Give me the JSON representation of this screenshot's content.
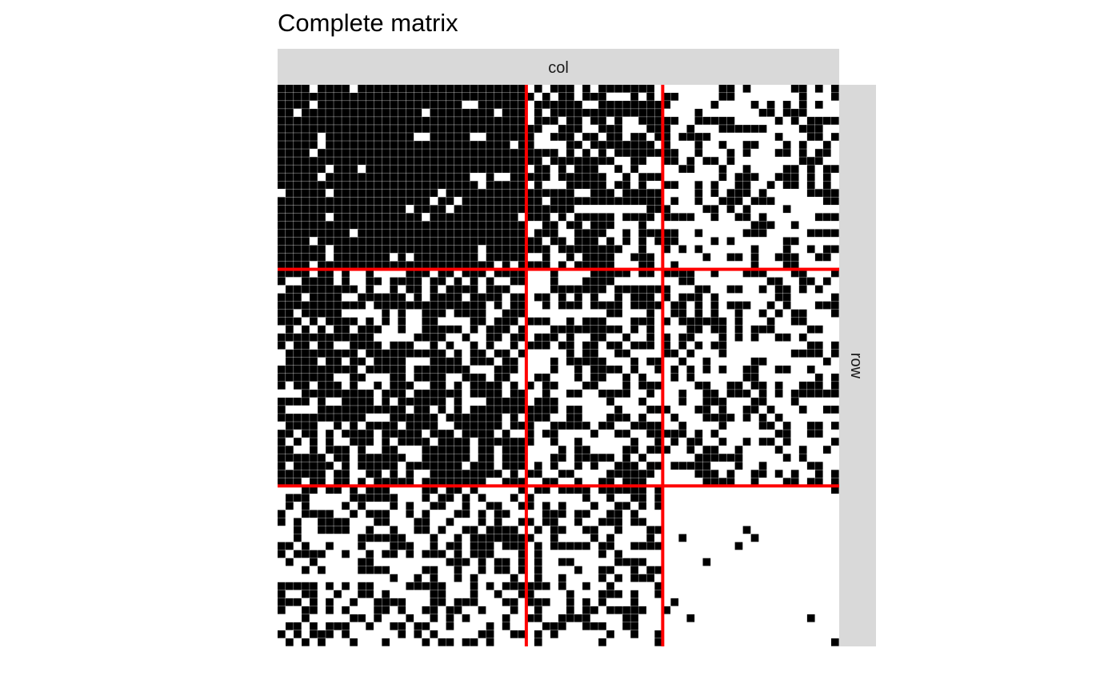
{
  "chart_data": {
    "type": "heatmap",
    "title": "Complete matrix",
    "facet_col_label": "col",
    "facet_row_label": "row",
    "n_rows": 70,
    "n_cols": 70,
    "row_blocks": [
      {
        "start": 0,
        "end": 23
      },
      {
        "start": 23,
        "end": 50
      },
      {
        "start": 50,
        "end": 70
      }
    ],
    "col_blocks": [
      {
        "start": 0,
        "end": 31
      },
      {
        "start": 31,
        "end": 48
      },
      {
        "start": 48,
        "end": 70
      }
    ],
    "block_density": [
      [
        0.94,
        0.65,
        0.4
      ],
      [
        0.68,
        0.5,
        0.4
      ],
      [
        0.46,
        0.46,
        0.03
      ]
    ],
    "value_colors": {
      "filled": "#000000",
      "empty": "#ffffff"
    },
    "separator_color": "#ff0000",
    "strip_color": "#d9d9d9",
    "grid": false,
    "legend": "none"
  }
}
